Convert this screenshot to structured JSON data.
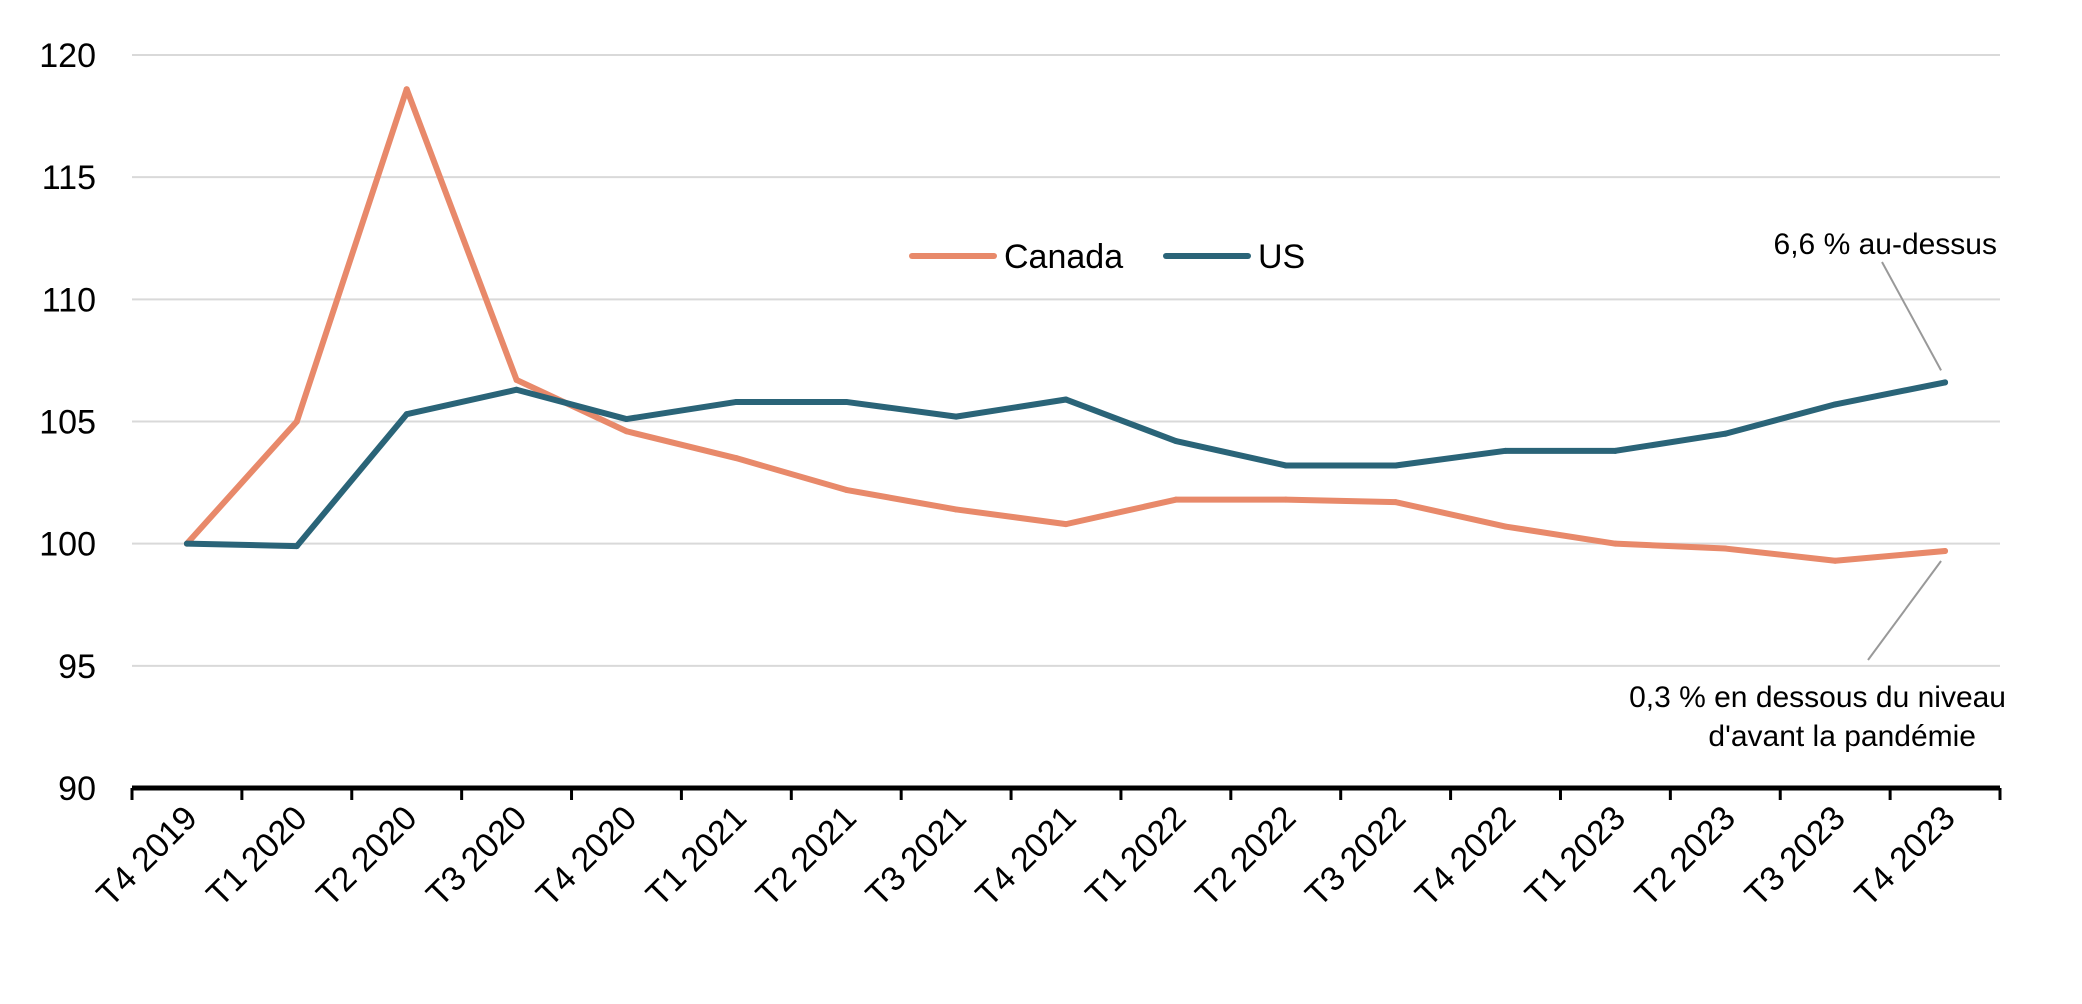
{
  "chart_data": {
    "type": "line",
    "title": "",
    "xlabel": "",
    "ylabel": "",
    "ylim": [
      90,
      120
    ],
    "yticks": [
      "90",
      "95",
      "100",
      "105",
      "110",
      "115",
      "120"
    ],
    "categories": [
      "T4 2019",
      "T1 2020",
      "T2 2020",
      "T3 2020",
      "T4 2020",
      "T1 2021",
      "T2 2021",
      "T3 2021",
      "T4 2021",
      "T1 2022",
      "T2 2022",
      "T3 2022",
      "T4 2022",
      "T1 2023",
      "T2 2023",
      "T3 2023",
      "T4 2023"
    ],
    "series": [
      {
        "name": "Canada",
        "color": "#E8896A",
        "values": [
          100.0,
          105.0,
          118.6,
          106.7,
          104.6,
          103.5,
          102.2,
          101.4,
          100.8,
          101.8,
          101.8,
          101.7,
          100.7,
          100.0,
          99.8,
          99.3,
          99.7
        ]
      },
      {
        "name": "US",
        "color": "#2A6478",
        "values": [
          100.0,
          99.9,
          105.3,
          106.3,
          105.1,
          105.8,
          105.8,
          105.2,
          105.9,
          104.2,
          103.2,
          103.2,
          103.8,
          103.8,
          104.5,
          105.7,
          106.6
        ]
      }
    ],
    "grid": true,
    "legend": "top-center",
    "annotations": [
      {
        "series": "US",
        "lines": [
          "6,6 % au-dessus"
        ]
      },
      {
        "series": "Canada",
        "lines": [
          "0,3 % en dessous du niveau",
          "d'avant la pandémie"
        ]
      }
    ]
  }
}
